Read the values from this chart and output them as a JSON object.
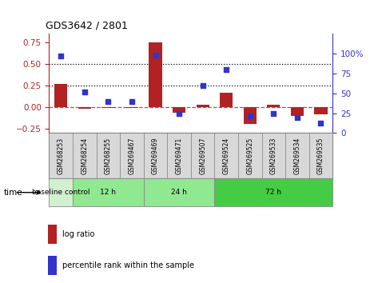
{
  "title": "GDS3642 / 2801",
  "samples": [
    "GSM268253",
    "GSM268254",
    "GSM268255",
    "GSM269467",
    "GSM269469",
    "GSM269471",
    "GSM269507",
    "GSM269524",
    "GSM269525",
    "GSM269533",
    "GSM269534",
    "GSM269535"
  ],
  "log_ratio": [
    0.27,
    -0.02,
    -0.01,
    -0.01,
    0.75,
    -0.06,
    0.03,
    0.17,
    -0.19,
    0.03,
    -0.1,
    -0.08
  ],
  "percentile_rank": [
    97,
    52,
    40,
    40,
    98,
    25,
    60,
    80,
    22,
    25,
    20,
    12
  ],
  "bar_color": "#b22222",
  "dot_color": "#3333cc",
  "ylim_left": [
    -0.3,
    0.85
  ],
  "ylim_right": [
    0,
    125
  ],
  "yticks_left": [
    -0.25,
    0,
    0.25,
    0.5,
    0.75
  ],
  "yticks_right": [
    0,
    25,
    50,
    75,
    100
  ],
  "hlines": [
    0.25,
    0.5
  ],
  "zero_line_color": "#cc4444",
  "groups_def": [
    {
      "label": "baseline control",
      "start": 0,
      "end": 0,
      "color": "#d0f0d0"
    },
    {
      "label": "12 h",
      "start": 1,
      "end": 3,
      "color": "#90e890"
    },
    {
      "label": "24 h",
      "start": 4,
      "end": 6,
      "color": "#90e890"
    },
    {
      "label": "72 h",
      "start": 7,
      "end": 11,
      "color": "#44cc44"
    }
  ],
  "time_label": "time",
  "legend_log_ratio": "log ratio",
  "legend_percentile": "percentile rank within the sample",
  "sample_bg": "#d8d8d8",
  "sample_line_color": "#888888"
}
